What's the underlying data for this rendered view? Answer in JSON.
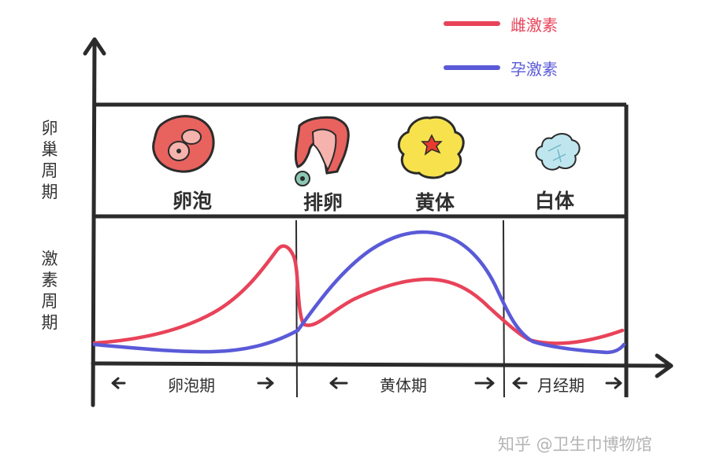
{
  "legend": {
    "items": [
      {
        "label": "雌激素",
        "color": "#e8435a"
      },
      {
        "label": "孕激素",
        "color": "#5a5ad8"
      }
    ]
  },
  "row_labels": {
    "ovarian_cycle": [
      "卵",
      "巢",
      "周",
      "期"
    ],
    "hormone_cycle": [
      "激",
      "素",
      "周",
      "期"
    ]
  },
  "stages": [
    {
      "label": "卵泡",
      "icon": "follicle-icon"
    },
    {
      "label": "排卵",
      "icon": "ovulation-icon"
    },
    {
      "label": "黄体",
      "icon": "corpus-luteum-icon"
    },
    {
      "label": "白体",
      "icon": "corpus-albicans-icon"
    }
  ],
  "phases": [
    {
      "label": "卵泡期"
    },
    {
      "label": "黄体期"
    },
    {
      "label": "月经期"
    }
  ],
  "colors": {
    "estrogen": "#e8435a",
    "progesterone": "#5a5ad8",
    "follicle": "#e8625e",
    "corpus_luteum": "#f7e24e",
    "corpus_albicans": "#bfe6ef",
    "frame": "#2b2b2b"
  },
  "watermark": "知乎 @卫生巾博物馆"
}
